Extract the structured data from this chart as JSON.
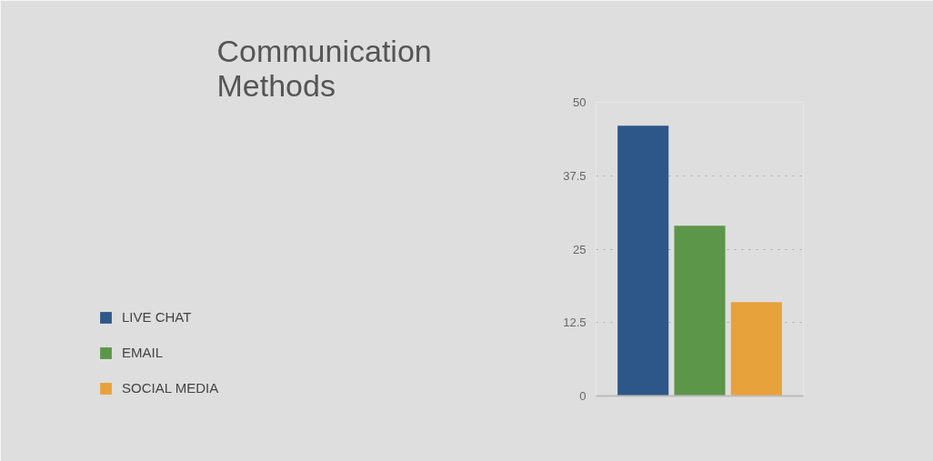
{
  "chart_data": {
    "type": "bar",
    "title": "Communication Methods",
    "categories": [
      null
    ],
    "series": [
      {
        "name": "LIVE CHAT",
        "color": "#2e5789",
        "values": [
          46
        ]
      },
      {
        "name": "EMAIL",
        "color": "#5c9648",
        "values": [
          29
        ]
      },
      {
        "name": "SOCIAL MEDIA",
        "color": "#e8a23c",
        "values": [
          16
        ]
      }
    ],
    "ylim": [
      0,
      50
    ],
    "yticks": [
      0,
      12.5,
      25,
      37.5,
      50
    ],
    "grid": "y",
    "legend": "left"
  }
}
